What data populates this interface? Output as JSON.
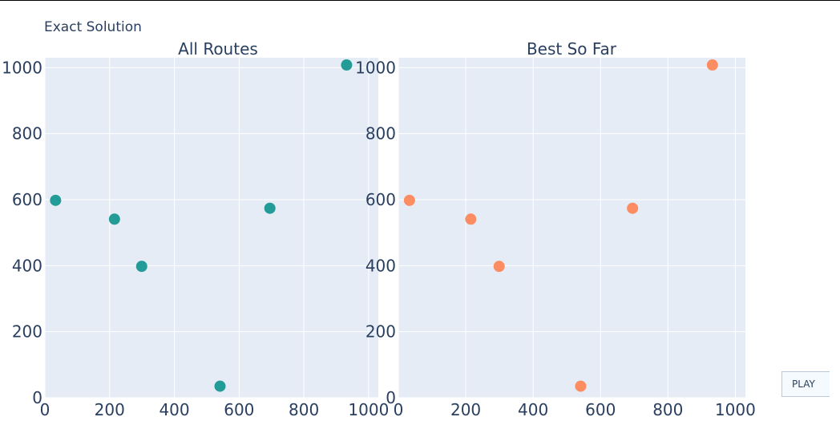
{
  "title": "Exact Solution",
  "play_label": "PLAY",
  "chart_data": [
    {
      "type": "scatter",
      "title": "All Routes",
      "xlim": [
        0,
        1030
      ],
      "ylim": [
        0,
        1030
      ],
      "xticks": [
        0,
        200,
        400,
        600,
        800,
        1000
      ],
      "yticks": [
        0,
        200,
        400,
        600,
        800,
        1000
      ],
      "color": "#239b96",
      "points": [
        {
          "x": 33,
          "y": 598
        },
        {
          "x": 215,
          "y": 541
        },
        {
          "x": 299,
          "y": 398
        },
        {
          "x": 541,
          "y": 35
        },
        {
          "x": 695,
          "y": 574
        },
        {
          "x": 932,
          "y": 1008
        }
      ]
    },
    {
      "type": "scatter",
      "title": "Best So Far",
      "xlim": [
        0,
        1030
      ],
      "ylim": [
        0,
        1030
      ],
      "xticks": [
        0,
        200,
        400,
        600,
        800,
        1000
      ],
      "yticks": [
        0,
        200,
        400,
        600,
        800,
        1000
      ],
      "color": "#fc8d62",
      "points": [
        {
          "x": 33,
          "y": 598
        },
        {
          "x": 215,
          "y": 541
        },
        {
          "x": 299,
          "y": 398
        },
        {
          "x": 541,
          "y": 35
        },
        {
          "x": 695,
          "y": 574
        },
        {
          "x": 932,
          "y": 1008
        }
      ]
    }
  ]
}
